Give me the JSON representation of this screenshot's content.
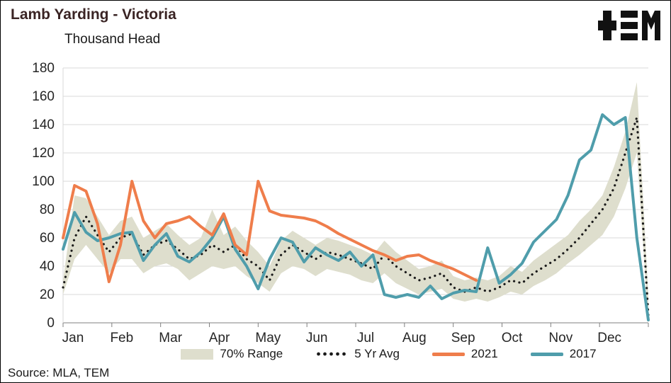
{
  "header": {
    "title": "Lamb Yarding - Victoria",
    "subtitle": "Thousand Head"
  },
  "source": "Source: MLA, TEM",
  "logo": {
    "brand": "TEM",
    "glyphs": [
      "plus",
      "triple-bar",
      "letter-m"
    ],
    "color": "#111111"
  },
  "legend": [
    {
      "label": "70% Range",
      "type": "band",
      "color": "#dedecd"
    },
    {
      "label": "5 Yr Avg",
      "type": "dotted",
      "color": "#1a1a1a"
    },
    {
      "label": "2021",
      "type": "line",
      "color": "#ef7d4b"
    },
    {
      "label": "2017",
      "type": "line",
      "color": "#4f9dab"
    }
  ],
  "chart_data": {
    "type": "line",
    "title": "Lamb Yarding - Victoria",
    "ylabel": "Thousand Head",
    "xlabel": "",
    "ylim": [
      0,
      180
    ],
    "ytick_step": 20,
    "grid": true,
    "legend_position": "bottom",
    "weeks": 52,
    "x_months": [
      "Jan",
      "Feb",
      "Mar",
      "Apr",
      "May",
      "Jun",
      "Jul",
      "Aug",
      "Sep",
      "Oct",
      "Nov",
      "Dec"
    ],
    "band": {
      "name": "70% Range",
      "color": "#dedecd",
      "lower": [
        20,
        45,
        55,
        45,
        35,
        45,
        45,
        35,
        40,
        42,
        38,
        30,
        35,
        40,
        38,
        40,
        33,
        28,
        22,
        35,
        40,
        38,
        33,
        38,
        36,
        34,
        30,
        28,
        35,
        28,
        24,
        20,
        22,
        24,
        17,
        15,
        17,
        15,
        18,
        22,
        20,
        26,
        30,
        35,
        42,
        48,
        55,
        62,
        75,
        95,
        120,
        0
      ],
      "upper": [
        30,
        90,
        88,
        75,
        62,
        72,
        75,
        60,
        65,
        70,
        62,
        55,
        60,
        80,
        62,
        68,
        58,
        50,
        40,
        58,
        65,
        60,
        55,
        60,
        58,
        55,
        52,
        48,
        58,
        50,
        44,
        38,
        40,
        44,
        33,
        30,
        32,
        30,
        33,
        40,
        36,
        44,
        50,
        56,
        62,
        72,
        80,
        90,
        110,
        135,
        170,
        20
      ]
    },
    "series": [
      {
        "name": "5 Yr Avg",
        "style": "dotted",
        "color": "#1a1a1a",
        "values": [
          25,
          60,
          75,
          62,
          50,
          60,
          63,
          48,
          55,
          58,
          52,
          45,
          48,
          55,
          50,
          55,
          45,
          40,
          30,
          48,
          55,
          50,
          45,
          50,
          48,
          45,
          42,
          38,
          48,
          40,
          35,
          30,
          32,
          35,
          25,
          22,
          25,
          22,
          25,
          30,
          28,
          35,
          40,
          45,
          52,
          60,
          70,
          80,
          95,
          120,
          145,
          5
        ]
      },
      {
        "name": "2017",
        "style": "solid",
        "color": "#4f9dab",
        "values": [
          52,
          78,
          64,
          58,
          60,
          63,
          64,
          44,
          55,
          63,
          47,
          43,
          50,
          60,
          75,
          52,
          40,
          24,
          45,
          60,
          57,
          43,
          53,
          48,
          44,
          50,
          40,
          48,
          20,
          18,
          20,
          18,
          26,
          17,
          21,
          23,
          22,
          53,
          28,
          34,
          42,
          57,
          65,
          73,
          90,
          115,
          122,
          147,
          140,
          145,
          60,
          2
        ]
      },
      {
        "name": "2021",
        "style": "solid",
        "color": "#ef7d4b",
        "values": [
          60,
          97,
          93,
          70,
          29,
          55,
          100,
          72,
          60,
          70,
          72,
          75,
          68,
          62,
          77,
          55,
          48,
          100,
          79,
          76,
          75,
          74,
          72,
          68,
          63,
          59,
          55,
          51,
          48,
          44,
          47,
          48,
          44,
          41,
          38,
          34,
          30,
          null,
          null,
          null,
          null,
          null,
          null,
          null,
          null,
          null,
          null,
          null,
          null,
          null,
          null,
          null
        ]
      }
    ]
  }
}
